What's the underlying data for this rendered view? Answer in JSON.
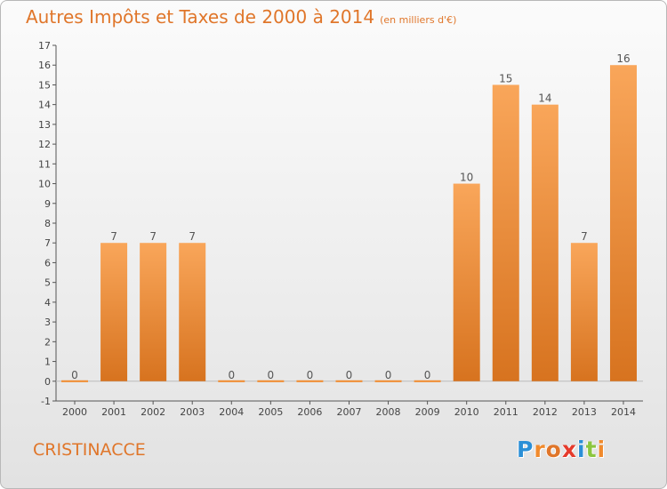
{
  "chart_data": {
    "type": "bar",
    "title": "Autres Impôts et Taxes de 2000 à 2014",
    "subtitle": "(en milliers d'€)",
    "categories": [
      "2000",
      "2001",
      "2002",
      "2003",
      "2004",
      "2005",
      "2006",
      "2007",
      "2008",
      "2009",
      "2010",
      "2011",
      "2012",
      "2013",
      "2014"
    ],
    "values": [
      0,
      7,
      7,
      7,
      0,
      0,
      0,
      0,
      0,
      0,
      10,
      15,
      14,
      7,
      16
    ],
    "ylim": [
      -1,
      17
    ],
    "yticks": [
      -1,
      0,
      1,
      2,
      3,
      4,
      5,
      6,
      7,
      8,
      9,
      10,
      11,
      12,
      13,
      14,
      15,
      16,
      17
    ],
    "xlabel": "",
    "ylabel": "",
    "bar_color": "#f08a2c",
    "grid": false,
    "legend": "none"
  },
  "location": "CRISTINACCE",
  "logo": {
    "text": "Proxiti",
    "letter_colors": [
      "#2b8fd6",
      "#f08a2c",
      "#e0762a",
      "#e53b2c",
      "#2b8fd6",
      "#8cc63f",
      "#f08a2c"
    ]
  },
  "colors": {
    "title": "#e0762a",
    "place": "#e0762a"
  }
}
